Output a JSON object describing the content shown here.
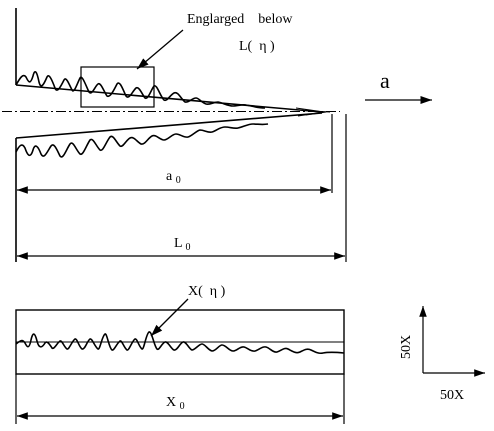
{
  "labels": {
    "enlarged_note": "Englarged    below",
    "l_eta": "L(  η )",
    "a": "a",
    "a0_main": "a",
    "a0_sub": "0",
    "l0_main": "L",
    "l0_sub": "0",
    "x_eta": "X(  η )",
    "x0_main": "X",
    "x0_sub": "0",
    "scale_y": "50X",
    "scale_x": "50X"
  },
  "colors": {
    "ink": "#000000",
    "background": "#ffffff"
  }
}
